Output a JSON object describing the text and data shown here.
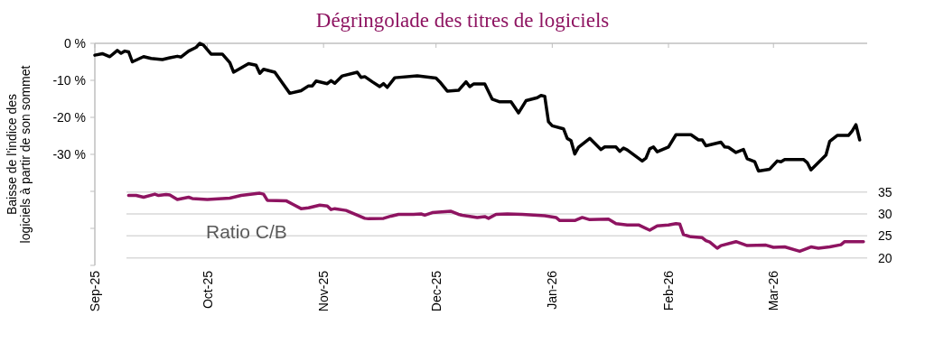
{
  "chart_data": {
    "type": "line",
    "title": "Dégringolade des titres de logiciels",
    "ylabel": "Baisse de l'indice des logiciels à partir de son sommet",
    "xlim": [
      "2025-09-01",
      "2026-03-26"
    ],
    "xticks": [
      {
        "value": "2025-09-01",
        "label": "Sep-25"
      },
      {
        "value": "2025-10-01",
        "label": "Oct-25"
      },
      {
        "value": "2025-11-01",
        "label": "Nov-25"
      },
      {
        "value": "2025-12-01",
        "label": "Dec-25"
      },
      {
        "value": "2026-01-01",
        "label": "Jan-26"
      },
      {
        "value": "2026-02-01",
        "label": "Feb-26"
      },
      {
        "value": "2026-03-01",
        "label": "Mar-26"
      }
    ],
    "ylim": [
      -60,
      0
    ],
    "yticks": [
      {
        "value": 0,
        "label": "0 %"
      },
      {
        "value": -10,
        "label": "-10 %"
      },
      {
        "value": -20,
        "label": "-20 %"
      },
      {
        "value": -30,
        "label": "-30 %"
      },
      {
        "value": -40,
        "label": null
      },
      {
        "value": -50,
        "label": null
      },
      {
        "value": -60,
        "label": null
      }
    ],
    "y2lim": [
      18.3,
      68.8
    ],
    "y2ticks": [
      20,
      25,
      30,
      35
    ],
    "grid": true,
    "legend": false,
    "series": [
      {
        "color": "#000000",
        "x": [
          "2025-09-01",
          "2025-09-03",
          "2025-09-05",
          "2025-09-07",
          "2025-09-08",
          "2025-09-09",
          "2025-09-10",
          "2025-09-11",
          "2025-09-14",
          "2025-09-16",
          "2025-09-19",
          "2025-09-21",
          "2025-09-23",
          "2025-09-24",
          "2025-09-26",
          "2025-09-28",
          "2025-09-29",
          "2025-09-30",
          "2025-10-02",
          "2025-10-05",
          "2025-10-07",
          "2025-10-08",
          "2025-10-12",
          "2025-10-14",
          "2025-10-15",
          "2025-10-16",
          "2025-10-19",
          "2025-10-21",
          "2025-10-23",
          "2025-10-26",
          "2025-10-28",
          "2025-10-29",
          "2025-10-30",
          "2025-11-02",
          "2025-11-03",
          "2025-11-04",
          "2025-11-06",
          "2025-11-10",
          "2025-11-11",
          "2025-11-12",
          "2025-11-14",
          "2025-11-16",
          "2025-11-17",
          "2025-11-18",
          "2025-11-20",
          "2025-11-26",
          "2025-12-01",
          "2025-12-02",
          "2025-12-04",
          "2025-12-07",
          "2025-12-09",
          "2025-12-10",
          "2025-12-11",
          "2025-12-14",
          "2025-12-16",
          "2025-12-18",
          "2025-12-21",
          "2025-12-23",
          "2025-12-25",
          "2025-12-28",
          "2025-12-29",
          "2025-12-30",
          "2025-12-31",
          "2026-01-01",
          "2026-01-04",
          "2026-01-05",
          "2026-01-06",
          "2026-01-07",
          "2026-01-08",
          "2026-01-11",
          "2026-01-14",
          "2026-01-15",
          "2026-01-18",
          "2026-01-19",
          "2026-01-20",
          "2026-01-21",
          "2026-01-25",
          "2026-01-26",
          "2026-01-27",
          "2026-01-28",
          "2026-01-29",
          "2026-02-01",
          "2026-02-03",
          "2026-02-07",
          "2026-02-09",
          "2026-02-10",
          "2026-02-11",
          "2026-02-15",
          "2026-02-16",
          "2026-02-17",
          "2026-02-19",
          "2026-02-21",
          "2026-02-22",
          "2026-02-24",
          "2026-02-25",
          "2026-02-28",
          "2026-03-02",
          "2026-03-03",
          "2026-03-04",
          "2026-03-09",
          "2026-03-10",
          "2026-03-11",
          "2026-03-13",
          "2026-03-15",
          "2026-03-16",
          "2026-03-18",
          "2026-03-21",
          "2026-03-22",
          "2026-03-23",
          "2026-03-24"
        ],
        "values": [
          -3.2,
          -2.8,
          -3.6,
          -1.9,
          -2.7,
          -2.1,
          -2.3,
          -5.0,
          -3.6,
          -4.1,
          -4.4,
          -3.9,
          -3.5,
          -3.7,
          -2.1,
          -1.1,
          0,
          -0.5,
          -2.9,
          -2.9,
          -5.2,
          -7.8,
          -5.5,
          -5.9,
          -8.1,
          -7.0,
          -7.8,
          -10.7,
          -13.5,
          -12.8,
          -11.5,
          -11.5,
          -10.2,
          -10.9,
          -10.1,
          -10.8,
          -8.8,
          -7.8,
          -9.2,
          -9.0,
          -10.4,
          -11.7,
          -10.9,
          -11.9,
          -9.3,
          -8.8,
          -9.4,
          -10.4,
          -12.9,
          -12.7,
          -10.4,
          -11.7,
          -11.0,
          -11.0,
          -15.1,
          -15.8,
          -15.8,
          -18.8,
          -15.5,
          -14.7,
          -14.1,
          -14.3,
          -21.2,
          -22.3,
          -23.1,
          -25.7,
          -26.3,
          -29.9,
          -28.1,
          -25.7,
          -28.7,
          -28.0,
          -28.0,
          -29.2,
          -28.3,
          -28.8,
          -31.8,
          -31.0,
          -28.5,
          -28.0,
          -29.3,
          -28.0,
          -24.7,
          -24.7,
          -26.1,
          -26.1,
          -27.7,
          -26.7,
          -28.0,
          -28.1,
          -29.5,
          -28.7,
          -31.2,
          -32.0,
          -34.5,
          -34.0,
          -31.8,
          -32.0,
          -31.4,
          -31.4,
          -32.2,
          -34.2,
          -32.2,
          -30.2,
          -26.5,
          -24.9,
          -24.9,
          -23.7,
          -22.0,
          -26.1
        ]
      },
      {
        "name": "Ratio C/B",
        "color": "#8e1461",
        "axis": "y2",
        "x": [
          "2025-09-10",
          "2025-09-12",
          "2025-09-14",
          "2025-09-17",
          "2025-09-18",
          "2025-09-20",
          "2025-09-21",
          "2025-09-23",
          "2025-09-26",
          "2025-09-27",
          "2025-10-01",
          "2025-10-07",
          "2025-10-10",
          "2025-10-15",
          "2025-10-16",
          "2025-10-17",
          "2025-10-22",
          "2025-10-24",
          "2025-10-26",
          "2025-10-28",
          "2025-10-31",
          "2025-11-02",
          "2025-11-03",
          "2025-11-04",
          "2025-11-07",
          "2025-11-09",
          "2025-11-12",
          "2025-11-13",
          "2025-11-17",
          "2025-11-19",
          "2025-11-21",
          "2025-11-25",
          "2025-11-27",
          "2025-11-28",
          "2025-11-30",
          "2025-12-05",
          "2025-12-07",
          "2025-12-08",
          "2025-12-12",
          "2025-12-14",
          "2025-12-15",
          "2025-12-17",
          "2025-12-20",
          "2025-12-24",
          "2025-12-30",
          "2026-01-02",
          "2026-01-03",
          "2026-01-07",
          "2026-01-09",
          "2026-01-11",
          "2026-01-16",
          "2026-01-18",
          "2026-01-21",
          "2026-01-24",
          "2026-01-27",
          "2026-01-29",
          "2026-02-01",
          "2026-02-03",
          "2026-02-04",
          "2026-02-05",
          "2026-02-07",
          "2026-02-10",
          "2026-02-11",
          "2026-02-12",
          "2026-02-14",
          "2026-02-15",
          "2026-02-19",
          "2026-02-22",
          "2026-02-27",
          "2026-03-01",
          "2026-03-04",
          "2026-03-08",
          "2026-03-11",
          "2026-03-13",
          "2026-03-16",
          "2026-03-19",
          "2026-03-20",
          "2026-03-25"
        ],
        "values": [
          34.2,
          34.2,
          33.8,
          34.5,
          34.2,
          34.4,
          34.3,
          33.3,
          33.8,
          33.5,
          33.3,
          33.6,
          34.2,
          34.7,
          34.5,
          33.1,
          33.0,
          32.1,
          31.2,
          31.4,
          32.0,
          31.8,
          31.0,
          31.2,
          30.8,
          30.1,
          29.0,
          28.9,
          29.0,
          29.5,
          29.9,
          29.9,
          30.0,
          29.7,
          30.3,
          30.6,
          29.9,
          29.7,
          29.2,
          29.4,
          29.0,
          29.9,
          30.0,
          29.9,
          29.6,
          29.2,
          28.5,
          28.5,
          29.2,
          28.7,
          28.8,
          27.8,
          27.5,
          27.5,
          26.3,
          27.3,
          27.5,
          27.8,
          27.7,
          25.3,
          24.8,
          24.6,
          23.9,
          23.6,
          22.2,
          22.8,
          23.7,
          22.8,
          22.9,
          22.4,
          22.5,
          21.5,
          22.5,
          22.2,
          22.5,
          23.0,
          23.7,
          23.7
        ]
      }
    ]
  }
}
